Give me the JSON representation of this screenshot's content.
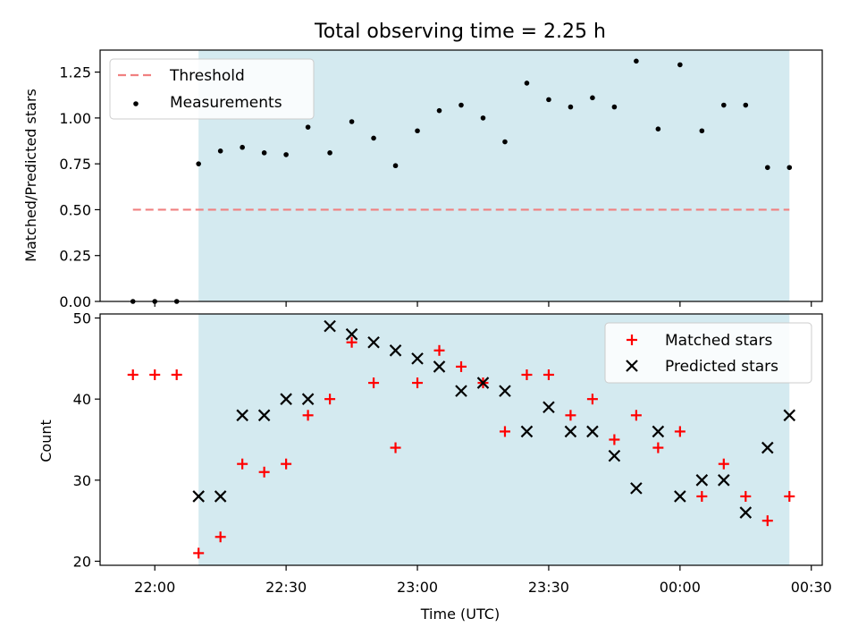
{
  "chart_data": {
    "title": "Total observing time = 2.25 h",
    "xlabel": "Time (UTC)",
    "x_ticks": [
      "22:00",
      "22:30",
      "23:00",
      "23:30",
      "00:00",
      "00:30"
    ],
    "x_tick_minutes": [
      0,
      30,
      60,
      90,
      120,
      150
    ],
    "xlim_minutes": [
      -12.5,
      152.5
    ],
    "shaded_span_minutes": [
      10,
      145
    ],
    "shade_color": "#d4eaf0",
    "panels": [
      {
        "type": "scatter",
        "ylabel": "Matched/Predicted stars",
        "ylim": [
          0,
          1.37
        ],
        "yticks": [
          "0.00",
          "0.25",
          "0.50",
          "0.75",
          "1.00",
          "1.25"
        ],
        "ytick_values": [
          0,
          0.25,
          0.5,
          0.75,
          1.0,
          1.25
        ],
        "threshold": {
          "name": "Threshold",
          "value": 0.5,
          "x_range": [
            -5,
            145
          ],
          "color": "#f08080"
        },
        "series": [
          {
            "name": "Measurements",
            "color": "#000000",
            "x": [
              -5,
              0,
              5,
              10,
              15,
              20,
              25,
              30,
              35,
              40,
              45,
              50,
              55,
              60,
              65,
              70,
              75,
              80,
              85,
              90,
              95,
              100,
              105,
              110,
              115,
              120,
              125,
              130,
              135,
              140,
              145
            ],
            "y": [
              0,
              0,
              0,
              0.75,
              0.82,
              0.84,
              0.81,
              0.8,
              0.95,
              0.81,
              0.98,
              0.89,
              0.74,
              0.93,
              1.04,
              1.07,
              1.0,
              0.87,
              1.19,
              1.1,
              1.06,
              1.11,
              1.06,
              1.31,
              0.94,
              1.29,
              0.93,
              1.07,
              1.07,
              0.73,
              0.73
            ]
          }
        ],
        "legend_position": "upper-left"
      },
      {
        "type": "scatter",
        "ylabel": "Count",
        "ylim": [
          19.5,
          50.5
        ],
        "yticks": [
          "20",
          "30",
          "40",
          "50"
        ],
        "ytick_values": [
          20,
          30,
          40,
          50
        ],
        "series": [
          {
            "name": "Matched stars",
            "marker": "+",
            "color": "#ff0000",
            "x": [
              -5,
              0,
              5,
              10,
              15,
              20,
              25,
              30,
              35,
              40,
              45,
              50,
              55,
              60,
              65,
              70,
              75,
              80,
              85,
              90,
              95,
              100,
              105,
              110,
              115,
              120,
              125,
              130,
              135,
              140,
              145
            ],
            "y": [
              43,
              43,
              43,
              21,
              23,
              32,
              31,
              32,
              38,
              40,
              47,
              42,
              34,
              42,
              46,
              44,
              42,
              36,
              43,
              43,
              38,
              40,
              35,
              38,
              34,
              36,
              28,
              32,
              28,
              25,
              28
            ]
          },
          {
            "name": "Predicted stars",
            "marker": "x",
            "color": "#000000",
            "x": [
              10,
              15,
              20,
              25,
              30,
              35,
              40,
              45,
              50,
              55,
              60,
              65,
              70,
              75,
              80,
              85,
              90,
              95,
              100,
              105,
              110,
              115,
              120,
              125,
              130,
              135,
              140,
              145
            ],
            "y": [
              28,
              28,
              38,
              38,
              40,
              40,
              49,
              48,
              47,
              46,
              45,
              44,
              41,
              42,
              41,
              36,
              39,
              36,
              36,
              33,
              29,
              36,
              28,
              30,
              30,
              26,
              34,
              38
            ]
          }
        ],
        "legend_position": "upper-right"
      }
    ]
  }
}
